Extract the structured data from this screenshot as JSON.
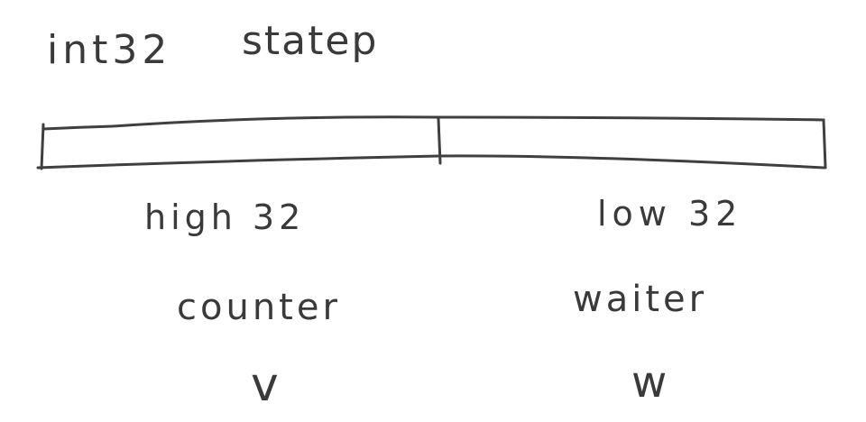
{
  "title": {
    "type": "int32",
    "name": "statep"
  },
  "segments": [
    {
      "bits": "high 32",
      "field": "counter",
      "symbol": "v"
    },
    {
      "bits": "low 32",
      "field": "waiter",
      "symbol": "w"
    }
  ],
  "colors": {
    "ink": "#3a3a3a",
    "background": "#ffffff"
  }
}
